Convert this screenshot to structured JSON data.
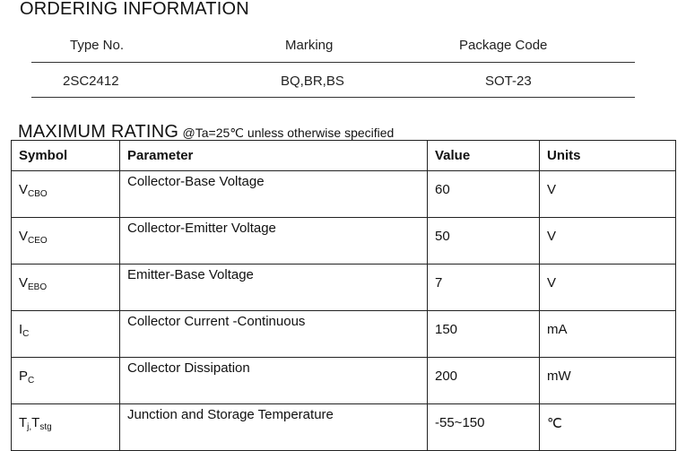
{
  "ordering": {
    "title": "ORDERING INFORMATION",
    "headers": [
      "Type No.",
      "Marking",
      "Package Code"
    ],
    "row": [
      "2SC2412",
      "BQ,BR,BS",
      "SOT-23"
    ]
  },
  "rating": {
    "title": "MAXIMUM RATING",
    "note": "@Ta=25℃ unless otherwise specified",
    "headers": [
      "Symbol",
      "Parameter",
      "Value",
      "Units"
    ],
    "rows": [
      {
        "sym": "V",
        "sub": "CBO",
        "param": "Collector-Base Voltage",
        "value": "60",
        "unit": "V"
      },
      {
        "sym": "V",
        "sub": "CEO",
        "param": "Collector-Emitter Voltage",
        "value": "50",
        "unit": "V"
      },
      {
        "sym": "V",
        "sub": "EBO",
        "param": "Emitter-Base Voltage",
        "value": "7",
        "unit": "V"
      },
      {
        "sym": "I",
        "sub": "C",
        "param": "Collector Current -Continuous",
        "value": "150",
        "unit": "mA"
      },
      {
        "sym": "P",
        "sub": "C",
        "param": "Collector Dissipation",
        "value": "200",
        "unit": "mW"
      },
      {
        "sym": "T",
        "sub": "j,",
        "sym2": "T",
        "sub2": "stg",
        "param": "Junction and Storage Temperature",
        "value": "-55~150",
        "unit": "℃"
      }
    ]
  }
}
